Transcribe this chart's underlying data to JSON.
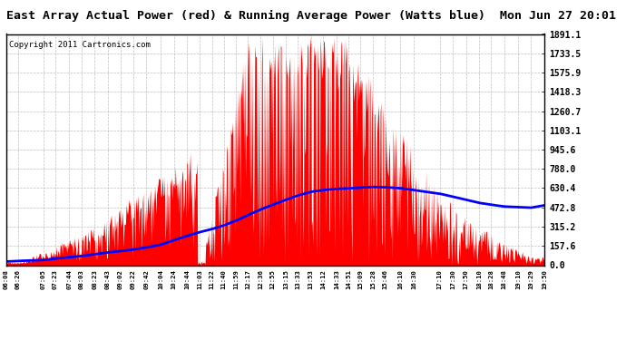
{
  "title": "East Array Actual Power (red) & Running Average Power (Watts blue)  Mon Jun 27 20:01",
  "copyright": "Copyright 2011 Cartronics.com",
  "yticks": [
    0.0,
    157.6,
    315.2,
    472.8,
    630.4,
    788.0,
    945.6,
    1103.1,
    1260.7,
    1418.3,
    1575.9,
    1733.5,
    1891.1
  ],
  "ymax": 1891.1,
  "ymin": 0.0,
  "xtick_labels": [
    "06:08",
    "06:26",
    "07:05",
    "07:23",
    "07:44",
    "08:03",
    "08:23",
    "08:43",
    "09:02",
    "09:22",
    "09:42",
    "10:04",
    "10:24",
    "10:44",
    "11:03",
    "11:22",
    "11:40",
    "11:59",
    "12:17",
    "12:36",
    "12:55",
    "13:15",
    "13:33",
    "13:53",
    "14:12",
    "14:33",
    "14:51",
    "15:09",
    "15:28",
    "15:46",
    "16:10",
    "16:30",
    "17:10",
    "17:30",
    "17:50",
    "18:10",
    "18:28",
    "18:48",
    "19:10",
    "19:29",
    "19:50"
  ],
  "bg_color": "#ffffff",
  "fill_color": "#ff0000",
  "line_color": "#0000ff",
  "grid_color": "#b0b0b0",
  "title_fontsize": 10,
  "copyright_fontsize": 7,
  "avg_points": [
    [
      6.133,
      30
    ],
    [
      6.433,
      35
    ],
    [
      7.083,
      42
    ],
    [
      7.383,
      55
    ],
    [
      7.733,
      65
    ],
    [
      8.05,
      75
    ],
    [
      8.383,
      90
    ],
    [
      8.717,
      105
    ],
    [
      9.033,
      115
    ],
    [
      9.367,
      128
    ],
    [
      9.7,
      145
    ],
    [
      10.067,
      168
    ],
    [
      10.4,
      205
    ],
    [
      10.733,
      240
    ],
    [
      11.05,
      270
    ],
    [
      11.367,
      295
    ],
    [
      11.667,
      325
    ],
    [
      11.983,
      365
    ],
    [
      12.283,
      410
    ],
    [
      12.6,
      455
    ],
    [
      12.917,
      495
    ],
    [
      13.25,
      535
    ],
    [
      13.55,
      570
    ],
    [
      13.883,
      600
    ],
    [
      14.2,
      615
    ],
    [
      14.55,
      625
    ],
    [
      14.85,
      628
    ],
    [
      15.15,
      635
    ],
    [
      15.467,
      640
    ],
    [
      15.767,
      638
    ],
    [
      16.167,
      630
    ],
    [
      16.5,
      615
    ],
    [
      17.167,
      585
    ],
    [
      17.5,
      560
    ],
    [
      17.833,
      535
    ],
    [
      18.167,
      510
    ],
    [
      18.467,
      495
    ],
    [
      18.8,
      480
    ],
    [
      19.167,
      475
    ],
    [
      19.483,
      470
    ],
    [
      19.833,
      490
    ]
  ]
}
